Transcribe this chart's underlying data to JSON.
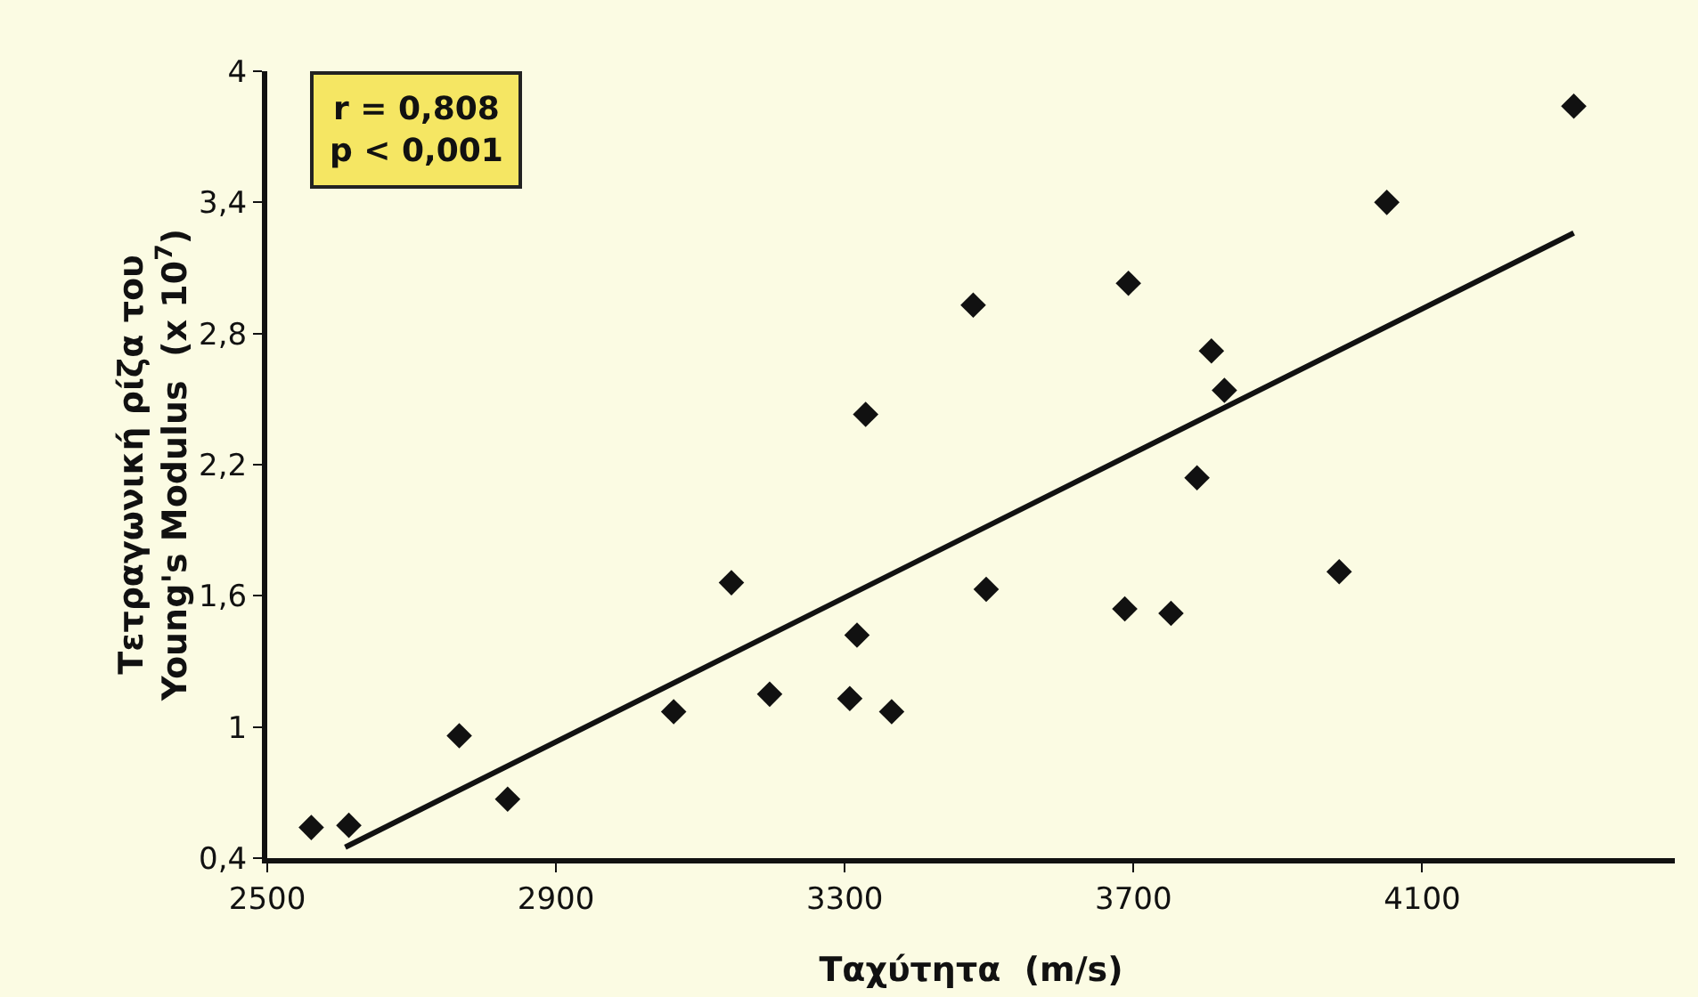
{
  "chart_data": {
    "type": "scatter",
    "xlabel": "Ταχύτητα  (m/s)",
    "ylabel": "Τετραγωνική ρίζα του\nYoung's Modulus  (x 10$^{7}$)",
    "annotations": [
      "r = 0,808\np < 0,001"
    ],
    "series": [
      {
        "color": "#111111",
        "x": [
          2561,
          2613,
          2766,
          2833,
          3063,
          3143,
          3196,
          3307,
          3317,
          3329,
          3365,
          3478,
          3496,
          3688,
          3693,
          3752,
          3788,
          3808,
          3826,
          3985,
          4051,
          4310
        ],
        "values": [
          0.54,
          0.55,
          0.96,
          0.67,
          1.07,
          1.66,
          1.15,
          1.13,
          1.42,
          2.43,
          1.07,
          2.93,
          1.63,
          1.54,
          3.03,
          1.52,
          2.14,
          2.72,
          2.54,
          1.71,
          3.4,
          3.84
        ]
      },
      {
        "type": "line",
        "marker": "none",
        "color": "#111111",
        "x": [
          2608,
          4310
        ],
        "values": [
          0.45,
          3.26
        ]
      }
    ],
    "marker": "diamond",
    "line_style": "solid",
    "grid": false,
    "xlim": [
      2500,
      4450
    ],
    "xticks": [
      2500,
      2900,
      3300,
      3700,
      4100
    ],
    "ylim": [
      0.4,
      4
    ],
    "yticks": [
      {
        "value": 0.4,
        "label": "0,4"
      },
      1,
      {
        "value": 1.6,
        "label": "1,6"
      },
      {
        "value": 2.2,
        "label": "2,2"
      },
      {
        "value": 2.8,
        "label": "2,8"
      },
      {
        "value": 3.4,
        "label": "3,4"
      },
      4
    ]
  }
}
